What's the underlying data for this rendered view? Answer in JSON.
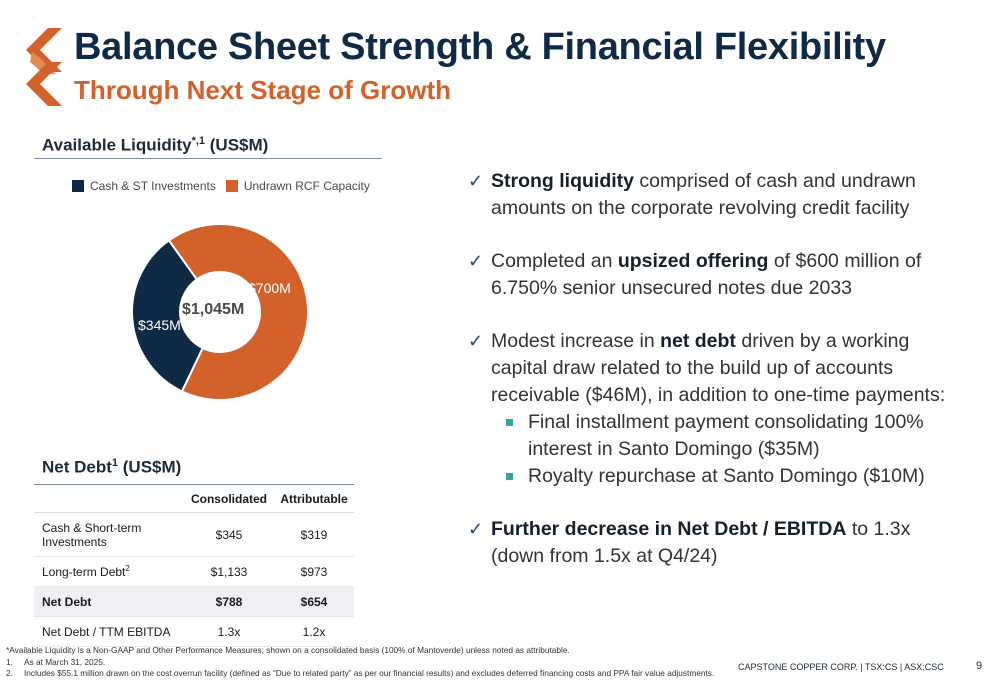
{
  "header": {
    "title": "Balance Sheet Strength & Financial Flexibility",
    "subtitle": "Through Next Stage of Growth"
  },
  "liquidity": {
    "heading": "Available Liquidity",
    "heading_sup": "*,1",
    "heading_unit": " (US$M)",
    "legend": [
      {
        "label": "Cash & ST Investments",
        "color": "#0f2a47"
      },
      {
        "label": "Undrawn RCF Capacity",
        "color": "#d2622a"
      }
    ],
    "center_label": "$1,045M"
  },
  "chart_data": {
    "type": "pie",
    "variant": "donut",
    "title": "Available Liquidity*,1 (US$M)",
    "total_label": "$1,045M",
    "slices": [
      {
        "name": "Cash & ST Investments",
        "value": 345,
        "label": "$345M",
        "color": "#0f2a47"
      },
      {
        "name": "Undrawn RCF Capacity",
        "value": 700,
        "label": "$700M",
        "color": "#d2622a"
      }
    ]
  },
  "net_debt": {
    "heading": "Net Debt",
    "heading_sup": "1",
    "heading_unit": " (US$M)",
    "columns": [
      "",
      "Consolidated",
      "Attributable"
    ],
    "rows": [
      {
        "label": "Cash & Short-term Investments",
        "sup": "",
        "consolidated": "$345",
        "attributable": "$319"
      },
      {
        "label": "Long-term Debt",
        "sup": "2",
        "consolidated": "$1,133",
        "attributable": "$973"
      },
      {
        "label": "Net Debt",
        "sup": "",
        "consolidated": "$788",
        "attributable": "$654"
      },
      {
        "label": "Net Debt / TTM EBITDA",
        "sup": "",
        "consolidated": "1.3x",
        "attributable": "1.2x"
      }
    ]
  },
  "bullets": [
    {
      "bold": "Strong liquidity",
      "text": " comprised of cash and undrawn amounts on the corporate revolving credit facility"
    },
    {
      "pre": "Completed an ",
      "bold": "upsized offering",
      "text": " of $600 million of 6.750% senior unsecured notes due 2033"
    },
    {
      "pre": "Modest increase in ",
      "bold": "net debt",
      "text": " driven by a working capital draw related to the build up of accounts receivable ($46M), in addition to one-time payments:"
    },
    {
      "bold": "Further decrease in Net Debt / EBITDA",
      "text": " to 1.3x (down from 1.5x at Q4/24)"
    }
  ],
  "sub_bullets": [
    "Final installment payment consolidating 100% interest in Santo Domingo ($35M)",
    "Royalty repurchase at Santo Domingo ($10M)"
  ],
  "icons": {
    "check": "✓"
  },
  "footnotes": {
    "star": "*Available Liquidity is a Non-GAAP and Other Performance Measures; shown on a consolidated basis (100% of Mantoverde) unless noted as attributable.",
    "n1_num": "1.",
    "n1": "As at March 31, 2025.",
    "n2_num": "2.",
    "n2": "Includes $55.1 million  drawn on the cost overrun facility (defined as “Due to related party” as per our financial results) and excludes deferred financing costs and PPA fair value adjustments."
  },
  "footer": {
    "company": "CAPSTONE COPPER CORP. | TSX:CS | ASX:CSC",
    "page": "9"
  }
}
